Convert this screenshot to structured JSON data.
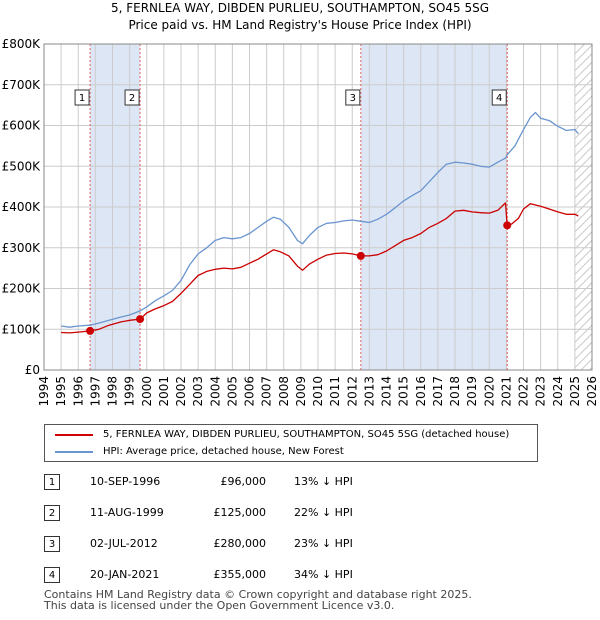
{
  "chart_data": {
    "type": "line",
    "title": "5, FERNLEA WAY, DIBDEN PURLIEU, SOUTHAMPTON, SO45 5SG",
    "subtitle": "Price paid vs. HM Land Registry's House Price Index (HPI)",
    "xlim": [
      1994,
      2026
    ],
    "ylim": [
      0,
      800000
    ],
    "y_ticks": [
      {
        "value": 0,
        "label": "£0"
      },
      {
        "value": 100000,
        "label": "£100K"
      },
      {
        "value": 200000,
        "label": "£200K"
      },
      {
        "value": 300000,
        "label": "£300K"
      },
      {
        "value": 400000,
        "label": "£400K"
      },
      {
        "value": 500000,
        "label": "£500K"
      },
      {
        "value": 600000,
        "label": "£600K"
      },
      {
        "value": 700000,
        "label": "£700K"
      },
      {
        "value": 800000,
        "label": "£800K"
      }
    ],
    "x_ticks": [
      "1994",
      "1995",
      "1996",
      "1997",
      "1998",
      "1999",
      "2000",
      "2001",
      "2002",
      "2003",
      "2004",
      "2005",
      "2006",
      "2007",
      "2008",
      "2009",
      "2010",
      "2011",
      "2012",
      "2013",
      "2014",
      "2015",
      "2016",
      "2017",
      "2018",
      "2019",
      "2020",
      "2021",
      "2022",
      "2023",
      "2024",
      "2025",
      "2026"
    ],
    "shaded_periods": [
      [
        1996.69,
        1999.61
      ],
      [
        2012.5,
        2021.05
      ]
    ],
    "hatched_from": 2025.0,
    "colors": {
      "property": "#cc0000",
      "hpi": "#6a95cf",
      "shade": "#dde6f5",
      "grid": "#cccccc",
      "vline": "#e06060"
    },
    "series": [
      {
        "name": "5, FERNLEA WAY, DIBDEN PURLIEU, SOUTHAMPTON, SO45 5SG (detached house)",
        "color": "#cc0000",
        "points": [
          [
            1995.0,
            92000
          ],
          [
            1995.5,
            91000
          ],
          [
            1996.0,
            93000
          ],
          [
            1996.69,
            96000
          ],
          [
            1997.2,
            100000
          ],
          [
            1997.8,
            110000
          ],
          [
            1998.5,
            118000
          ],
          [
            1999.0,
            122000
          ],
          [
            1999.61,
            125000
          ],
          [
            2000.0,
            140000
          ],
          [
            2000.5,
            150000
          ],
          [
            2001.0,
            158000
          ],
          [
            2001.5,
            168000
          ],
          [
            2002.0,
            188000
          ],
          [
            2002.5,
            210000
          ],
          [
            2003.0,
            232000
          ],
          [
            2003.5,
            242000
          ],
          [
            2004.0,
            247000
          ],
          [
            2004.5,
            250000
          ],
          [
            2005.0,
            248000
          ],
          [
            2005.5,
            252000
          ],
          [
            2006.0,
            262000
          ],
          [
            2006.5,
            272000
          ],
          [
            2007.0,
            285000
          ],
          [
            2007.4,
            295000
          ],
          [
            2007.8,
            290000
          ],
          [
            2008.3,
            280000
          ],
          [
            2008.8,
            255000
          ],
          [
            2009.1,
            245000
          ],
          [
            2009.5,
            260000
          ],
          [
            2010.0,
            272000
          ],
          [
            2010.5,
            282000
          ],
          [
            2011.0,
            286000
          ],
          [
            2011.5,
            287000
          ],
          [
            2012.0,
            285000
          ],
          [
            2012.5,
            280000
          ],
          [
            2013.0,
            280000
          ],
          [
            2013.5,
            283000
          ],
          [
            2014.0,
            292000
          ],
          [
            2014.5,
            305000
          ],
          [
            2015.0,
            318000
          ],
          [
            2015.5,
            325000
          ],
          [
            2016.0,
            335000
          ],
          [
            2016.5,
            350000
          ],
          [
            2017.0,
            360000
          ],
          [
            2017.5,
            372000
          ],
          [
            2018.0,
            390000
          ],
          [
            2018.5,
            392000
          ],
          [
            2019.0,
            388000
          ],
          [
            2019.5,
            386000
          ],
          [
            2020.0,
            385000
          ],
          [
            2020.5,
            392000
          ],
          [
            2020.95,
            410000
          ],
          [
            2021.05,
            355000
          ],
          [
            2021.3,
            358000
          ],
          [
            2021.7,
            372000
          ],
          [
            2022.0,
            395000
          ],
          [
            2022.4,
            408000
          ],
          [
            2022.7,
            405000
          ],
          [
            2023.0,
            402000
          ],
          [
            2023.5,
            395000
          ],
          [
            2024.0,
            388000
          ],
          [
            2024.5,
            382000
          ],
          [
            2025.0,
            382000
          ],
          [
            2025.2,
            378000
          ]
        ]
      },
      {
        "name": "HPI: Average price, detached house, New Forest",
        "color": "#6a95cf",
        "points": [
          [
            1995.0,
            108000
          ],
          [
            1995.5,
            105000
          ],
          [
            1996.0,
            108000
          ],
          [
            1996.69,
            110000
          ],
          [
            1997.2,
            115000
          ],
          [
            1997.8,
            122000
          ],
          [
            1998.5,
            130000
          ],
          [
            1999.0,
            135000
          ],
          [
            1999.61,
            145000
          ],
          [
            2000.0,
            155000
          ],
          [
            2000.5,
            170000
          ],
          [
            2001.0,
            182000
          ],
          [
            2001.5,
            195000
          ],
          [
            2002.0,
            220000
          ],
          [
            2002.5,
            258000
          ],
          [
            2003.0,
            285000
          ],
          [
            2003.5,
            300000
          ],
          [
            2004.0,
            318000
          ],
          [
            2004.5,
            325000
          ],
          [
            2005.0,
            322000
          ],
          [
            2005.5,
            325000
          ],
          [
            2006.0,
            335000
          ],
          [
            2006.5,
            350000
          ],
          [
            2007.0,
            365000
          ],
          [
            2007.4,
            375000
          ],
          [
            2007.8,
            370000
          ],
          [
            2008.3,
            350000
          ],
          [
            2008.8,
            318000
          ],
          [
            2009.1,
            310000
          ],
          [
            2009.5,
            330000
          ],
          [
            2010.0,
            350000
          ],
          [
            2010.5,
            360000
          ],
          [
            2011.0,
            362000
          ],
          [
            2011.5,
            366000
          ],
          [
            2012.0,
            368000
          ],
          [
            2012.5,
            365000
          ],
          [
            2013.0,
            362000
          ],
          [
            2013.5,
            370000
          ],
          [
            2014.0,
            382000
          ],
          [
            2014.5,
            398000
          ],
          [
            2015.0,
            415000
          ],
          [
            2015.5,
            428000
          ],
          [
            2016.0,
            440000
          ],
          [
            2016.5,
            462000
          ],
          [
            2017.0,
            485000
          ],
          [
            2017.5,
            505000
          ],
          [
            2018.0,
            510000
          ],
          [
            2018.5,
            508000
          ],
          [
            2019.0,
            505000
          ],
          [
            2019.5,
            500000
          ],
          [
            2020.0,
            498000
          ],
          [
            2020.5,
            510000
          ],
          [
            2020.95,
            520000
          ],
          [
            2021.05,
            528000
          ],
          [
            2021.5,
            550000
          ],
          [
            2022.0,
            590000
          ],
          [
            2022.4,
            620000
          ],
          [
            2022.7,
            632000
          ],
          [
            2023.0,
            618000
          ],
          [
            2023.5,
            612000
          ],
          [
            2024.0,
            598000
          ],
          [
            2024.5,
            588000
          ],
          [
            2025.0,
            590000
          ],
          [
            2025.2,
            580000
          ]
        ]
      }
    ],
    "sales": [
      {
        "id": "1",
        "date": "10-SEP-1996",
        "x": 1996.69,
        "price": 96000,
        "price_label": "£96,000",
        "hpi_diff": "13% ↓ HPI"
      },
      {
        "id": "2",
        "date": "11-AUG-1999",
        "x": 1999.61,
        "price": 125000,
        "price_label": "£125,000",
        "hpi_diff": "22% ↓ HPI"
      },
      {
        "id": "3",
        "date": "02-JUL-2012",
        "x": 2012.5,
        "price": 280000,
        "price_label": "£280,000",
        "hpi_diff": "23% ↓ HPI"
      },
      {
        "id": "4",
        "date": "20-JAN-2021",
        "x": 2021.05,
        "price": 355000,
        "price_label": "£355,000",
        "hpi_diff": "34% ↓ HPI"
      }
    ]
  },
  "legend": {
    "property_label": "5, FERNLEA WAY, DIBDEN PURLIEU, SOUTHAMPTON, SO45 5SG (detached house)",
    "hpi_label": "HPI: Average price, detached house, New Forest"
  },
  "footer": {
    "line1": "Contains HM Land Registry data © Crown copyright and database right 2025.",
    "line2": "This data is licensed under the Open Government Licence v3.0."
  }
}
